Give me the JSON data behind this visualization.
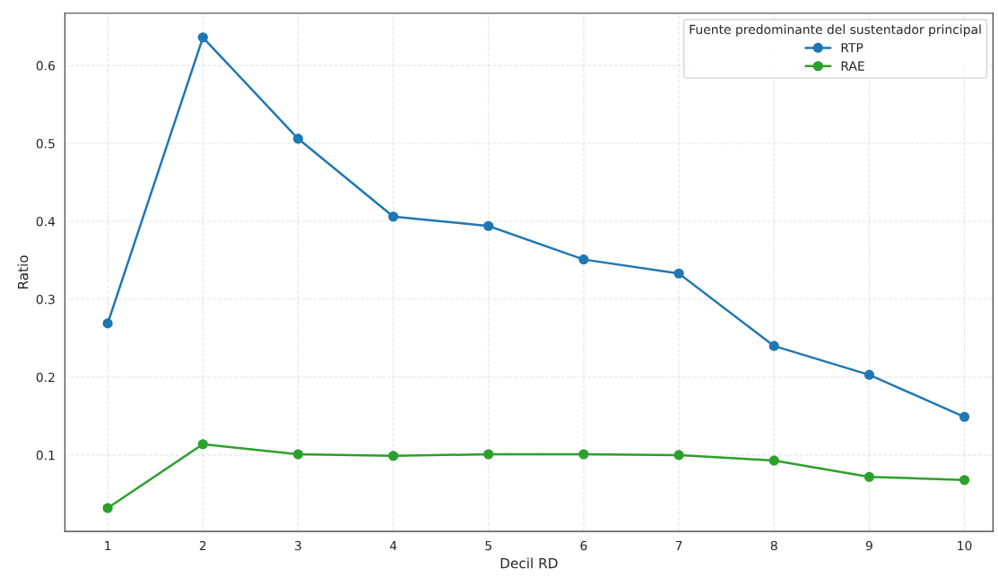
{
  "chart_data": {
    "type": "line",
    "xlabel": "Decil RD",
    "ylabel": "Ratio",
    "legend_title": "Fuente predominante del sustentador principal",
    "x": [
      1,
      2,
      3,
      4,
      5,
      6,
      7,
      8,
      9,
      10
    ],
    "series": [
      {
        "name": "RTP",
        "color": "#1f77b4",
        "values": [
          0.269,
          0.636,
          0.506,
          0.406,
          0.394,
          0.351,
          0.333,
          0.24,
          0.203,
          0.149
        ]
      },
      {
        "name": "RAE",
        "color": "#2ca02c",
        "values": [
          0.032,
          0.114,
          0.101,
          0.099,
          0.101,
          0.101,
          0.1,
          0.093,
          0.072,
          0.068
        ]
      }
    ],
    "xlim": [
      0.55,
      10.3
    ],
    "ylim": [
      0.002,
      0.667
    ],
    "xticks": [
      1,
      2,
      3,
      4,
      5,
      6,
      7,
      8,
      9,
      10
    ],
    "yticks": [
      0.1,
      0.2,
      0.3,
      0.4,
      0.5,
      0.6
    ],
    "grid": true,
    "legend": "top right",
    "marker": "circle",
    "line_style": "solid"
  }
}
